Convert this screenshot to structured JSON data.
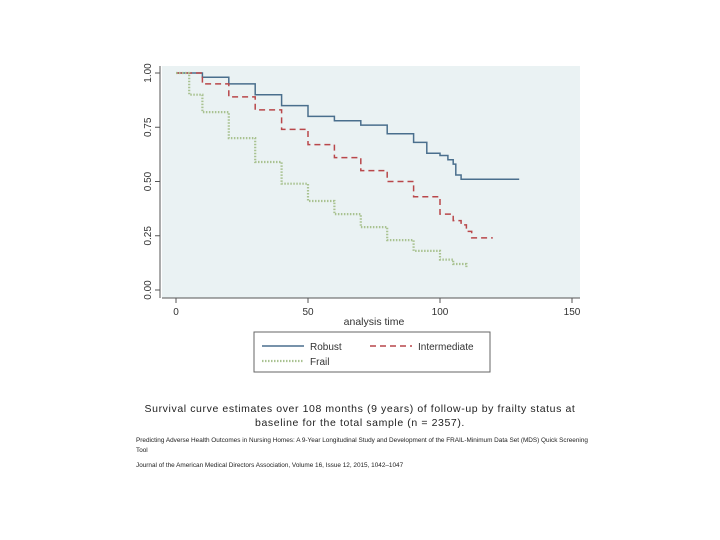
{
  "chart_data": {
    "type": "line",
    "title": "",
    "xlabel": "analysis time",
    "ylabel": "",
    "xlim": [
      0,
      150
    ],
    "ylim": [
      0,
      1
    ],
    "xticks": [
      "0",
      "50",
      "100",
      "150"
    ],
    "yticks": [
      "0.00",
      "0.25",
      "0.50",
      "0.75",
      "1.00"
    ],
    "grid": false,
    "legend_position": "bottom",
    "legend_columns": 2,
    "plot_background": "#eaf2f3",
    "series": [
      {
        "name": "Robust",
        "color": "#4a6f8d",
        "dash": "solid",
        "x": [
          0,
          10,
          20,
          30,
          40,
          50,
          60,
          70,
          80,
          90,
          95,
          100,
          103,
          105,
          106,
          108,
          112,
          120,
          130
        ],
        "y": [
          1.0,
          0.98,
          0.95,
          0.9,
          0.85,
          0.8,
          0.78,
          0.76,
          0.72,
          0.68,
          0.63,
          0.62,
          0.6,
          0.58,
          0.53,
          0.51,
          0.51,
          0.51,
          0.51
        ]
      },
      {
        "name": "Intermediate",
        "color": "#b9474a",
        "dash": "dashed",
        "x": [
          0,
          10,
          20,
          30,
          40,
          50,
          60,
          70,
          80,
          90,
          100,
          105,
          108,
          110,
          112,
          120
        ],
        "y": [
          1.0,
          0.95,
          0.89,
          0.83,
          0.74,
          0.67,
          0.61,
          0.55,
          0.5,
          0.43,
          0.35,
          0.32,
          0.3,
          0.27,
          0.24,
          0.24
        ]
      },
      {
        "name": "Frail",
        "color": "#a9c291",
        "dash": "dotted",
        "x": [
          0,
          5,
          10,
          20,
          30,
          40,
          50,
          60,
          70,
          80,
          90,
          100,
          105,
          110
        ],
        "y": [
          1.0,
          0.9,
          0.82,
          0.7,
          0.59,
          0.49,
          0.41,
          0.35,
          0.29,
          0.23,
          0.18,
          0.14,
          0.12,
          0.1
        ]
      }
    ]
  },
  "caption": {
    "line1": "Survival curve estimates over 108 months (9 years) of follow-up by frailty status at",
    "line2": "baseline for the total sample (n = 2357)."
  },
  "source": {
    "title": "Predicting Adverse Health Outcomes in Nursing Homes: A 9-Year Longitudinal Study and Development of the FRAIL-Minimum Data Set (MDS) Quick Screening Tool",
    "journal": "Journal of the American Medical Directors Association, Volume 16, Issue 12, 2015, 1042–1047"
  }
}
